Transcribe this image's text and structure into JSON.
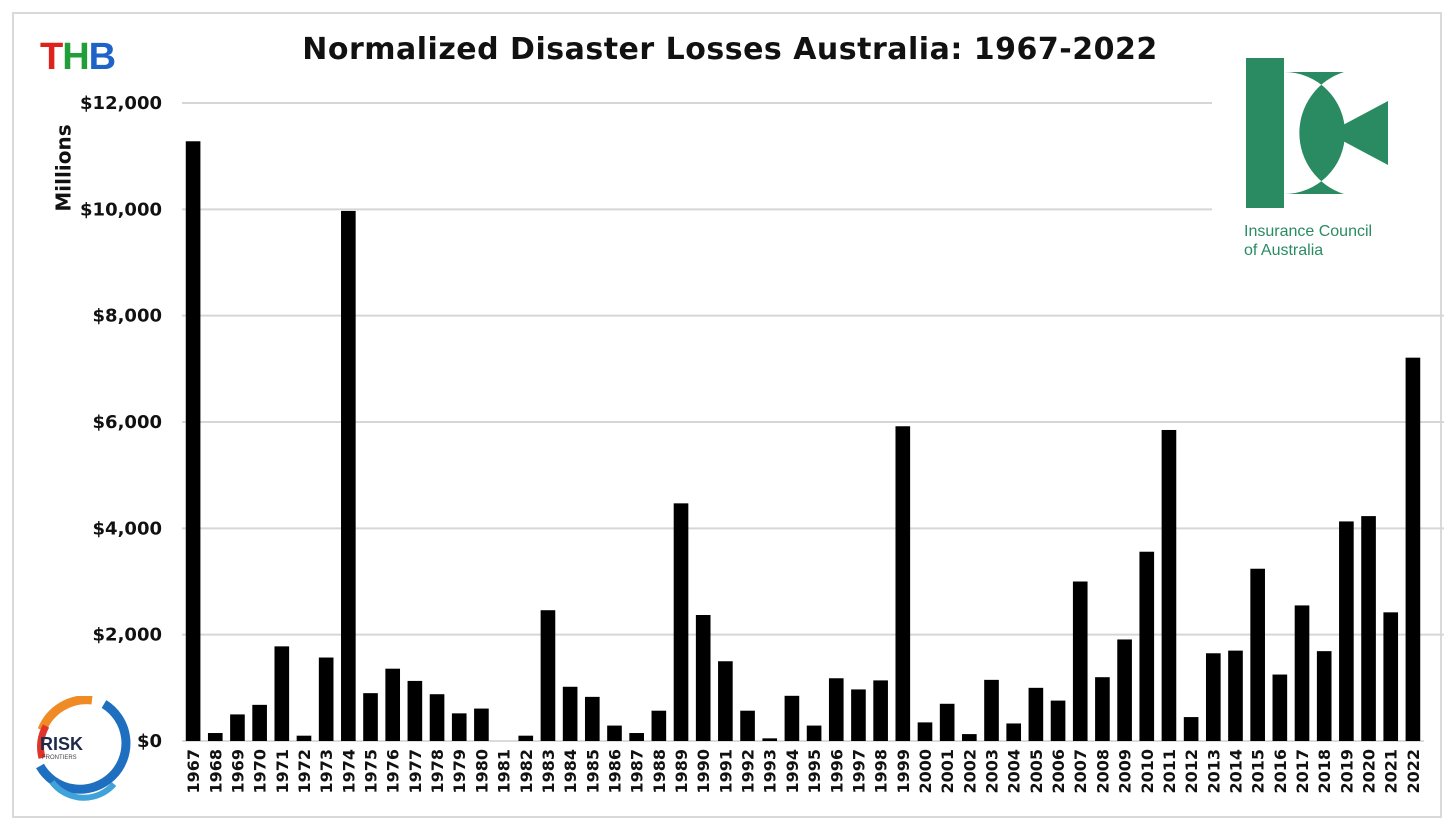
{
  "header": {
    "title": "Normalized Disaster Losses Australia: 1967-2022",
    "badge_letters": [
      "T",
      "H",
      "B"
    ],
    "badge_colors": [
      "#e0221c",
      "#1f9e3a",
      "#1e63c8"
    ]
  },
  "sponsor": {
    "name_line1": "Insurance Council",
    "name_line2": "of Australia",
    "color": "#2a8b63"
  },
  "partner": {
    "name": "RISK",
    "sub": "FRONTIERS"
  },
  "chart_data": {
    "type": "bar",
    "title": "Normalized Disaster Losses Australia: 1967-2022",
    "ylabel": "Millions",
    "xlabel": "",
    "ylim": [
      0,
      12000
    ],
    "yticks": [
      "$0",
      "$2,000",
      "$4,000",
      "$6,000",
      "$8,000",
      "$10,000",
      "$12,000"
    ],
    "grid": true,
    "bar_color": "#000000",
    "categories": [
      "1967",
      "1968",
      "1969",
      "1970",
      "1971",
      "1972",
      "1973",
      "1974",
      "1975",
      "1976",
      "1977",
      "1978",
      "1979",
      "1980",
      "1981",
      "1982",
      "1983",
      "1984",
      "1985",
      "1986",
      "1987",
      "1988",
      "1989",
      "1990",
      "1991",
      "1992",
      "1993",
      "1994",
      "1995",
      "1996",
      "1997",
      "1998",
      "1999",
      "2000",
      "2001",
      "2002",
      "2003",
      "2004",
      "2005",
      "2006",
      "2007",
      "2008",
      "2009",
      "2010",
      "2011",
      "2012",
      "2013",
      "2014",
      "2015",
      "2016",
      "2017",
      "2018",
      "2019",
      "2020",
      "2021",
      "2022"
    ],
    "values": [
      11280,
      150,
      500,
      680,
      1780,
      100,
      1570,
      9970,
      900,
      1360,
      1130,
      880,
      520,
      610,
      0,
      100,
      2460,
      1020,
      830,
      290,
      150,
      570,
      4470,
      2370,
      1500,
      570,
      50,
      850,
      290,
      1180,
      970,
      1140,
      5920,
      350,
      700,
      130,
      1150,
      330,
      1000,
      760,
      3000,
      1200,
      1910,
      3560,
      5850,
      450,
      1650,
      1700,
      3240,
      1250,
      2550,
      1690,
      4130,
      4230,
      2420,
      7210
    ]
  }
}
